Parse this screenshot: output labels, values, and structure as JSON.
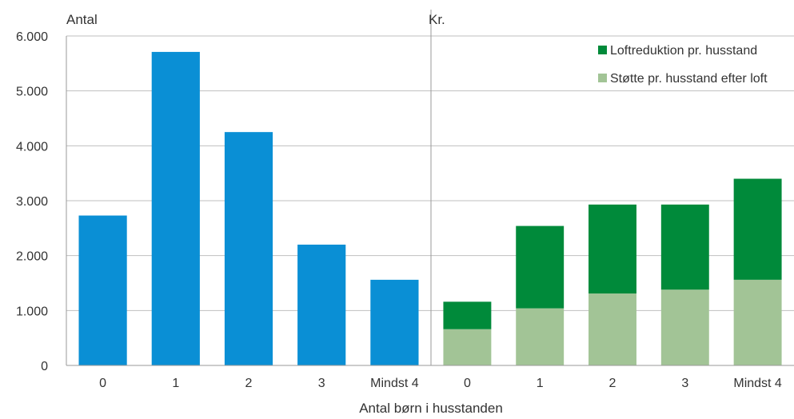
{
  "chart_data": [
    {
      "type": "bar",
      "ylabel": "Antal",
      "ylim": [
        0,
        6000
      ],
      "yticks": [
        "0",
        "1.000",
        "2.000",
        "3.000",
        "4.000",
        "5.000",
        "6.000"
      ],
      "categories": [
        "0",
        "1",
        "2",
        "3",
        "Mindst 4"
      ],
      "series": [
        {
          "color": "#0a8fd5",
          "values": [
            2730,
            5710,
            4250,
            2200,
            1560
          ]
        }
      ],
      "grid": true
    },
    {
      "type": "bar",
      "stacked": true,
      "ylabel": "Kr.",
      "ylim": [
        0,
        6000
      ],
      "categories": [
        "0",
        "1",
        "2",
        "3",
        "Mindst 4"
      ],
      "series": [
        {
          "name": "Støtte pr. husstand efter loft",
          "color": "#a2c496",
          "values": [
            660,
            1040,
            1310,
            1380,
            1560
          ]
        },
        {
          "name": "Loftreduktion pr. husstand",
          "color": "#008a3a",
          "values": [
            500,
            1500,
            1620,
            1550,
            1840
          ]
        }
      ],
      "legend_position": "top-right",
      "grid": true
    }
  ],
  "xlabel": "Antal børn i husstanden"
}
